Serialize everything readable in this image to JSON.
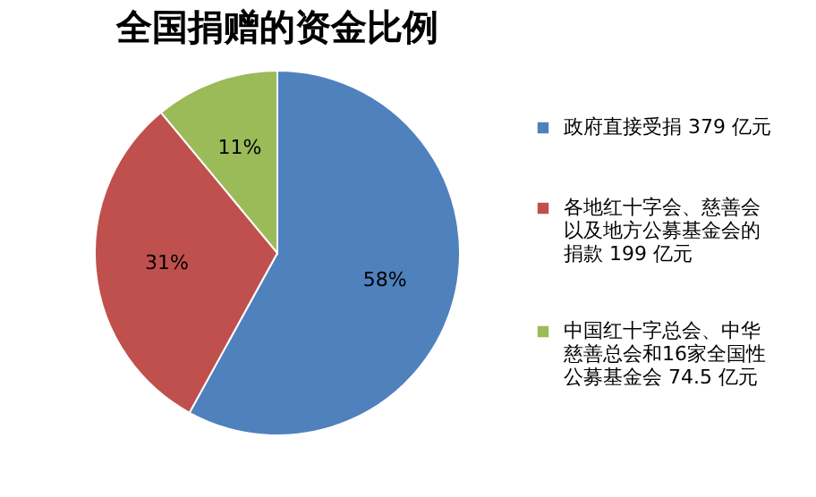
{
  "chart_data": {
    "type": "pie",
    "title": "全国捐赠的资金比例",
    "categories": [
      "政府直接受捐 379 亿元",
      "各地红十字会、慈善会以及地方公募基金会的捐款 199 亿元",
      "中国红十字总会、中华慈善总会和16家全国性公募基金会 74.5 亿元"
    ],
    "values": [
      58,
      31,
      11
    ],
    "colors": [
      "#4f81bd",
      "#c0504d",
      "#9bbb59"
    ],
    "value_labels": [
      "58%",
      "31%",
      "11%"
    ],
    "legend": "right"
  }
}
